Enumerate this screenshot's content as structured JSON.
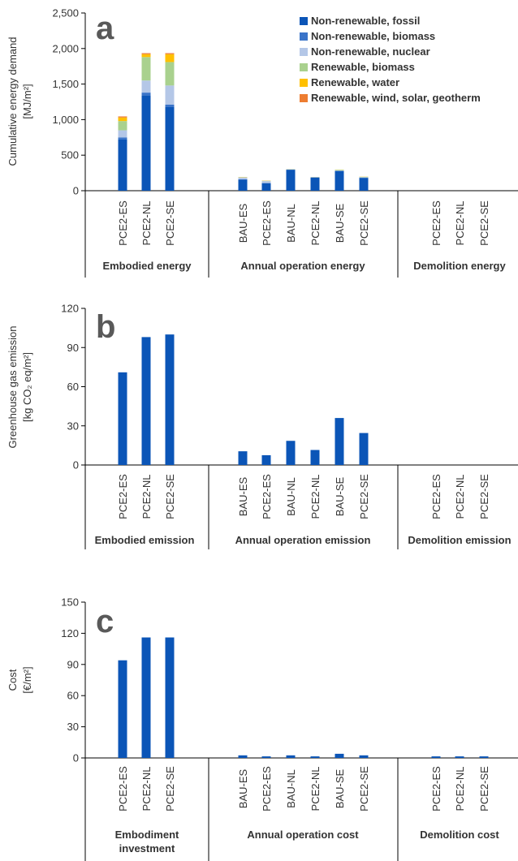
{
  "chart_data": [
    {
      "type": "bar",
      "stacked": true,
      "panel_label": "a",
      "ylabel_lines": [
        "Cumulative energy demand",
        "[MJ/m²]"
      ],
      "ylim": [
        0,
        2500
      ],
      "yticks": [
        "0",
        "500",
        "1,000",
        "1,500",
        "2,000",
        "2,500"
      ],
      "ytick_values": [
        0,
        500,
        1000,
        1500,
        2000,
        2500
      ],
      "legend": [
        {
          "name": "Non-renewable, fossil",
          "color": "#0B55B7"
        },
        {
          "name": "Non-renewable, biomass",
          "color": "#3A74C9"
        },
        {
          "name": "Non-renewable, nuclear",
          "color": "#B4C7E7"
        },
        {
          "name": "Renewable, biomass",
          "color": "#A9D18E"
        },
        {
          "name": "Renewable, water",
          "color": "#FFC000"
        },
        {
          "name": "Renewable, wind, solar, geotherm",
          "color": "#ED7D31"
        }
      ],
      "groups": [
        {
          "label": "Embodied energy",
          "categories": [
            "PCE2-ES",
            "PCE2-NL",
            "PCE2-SE"
          ]
        },
        {
          "label": "Annual operation energy",
          "categories": [
            "BAU-ES",
            "PCE2-ES",
            "BAU-NL",
            "PCE2-NL",
            "BAU-SE",
            "PCE2-SE"
          ]
        },
        {
          "label": "Demolition energy",
          "categories": [
            "PCE2-ES",
            "PCE2-NL",
            "PCE2-SE"
          ]
        }
      ],
      "stacks": [
        [
          [
            720,
            30,
            100,
            130,
            50,
            15
          ],
          [
            1340,
            40,
            170,
            330,
            40,
            15
          ],
          [
            1180,
            30,
            270,
            330,
            110,
            15
          ]
        ],
        [
          [
            155,
            5,
            25,
            5,
            2,
            1
          ],
          [
            105,
            5,
            25,
            5,
            2,
            1
          ],
          [
            295,
            3,
            3,
            2,
            1,
            0
          ],
          [
            185,
            3,
            3,
            2,
            1,
            0
          ],
          [
            275,
            5,
            5,
            8,
            2,
            0
          ],
          [
            180,
            5,
            5,
            6,
            2,
            0
          ]
        ],
        [
          [
            0,
            0,
            0,
            0,
            0,
            0
          ],
          [
            0,
            0,
            0,
            0,
            0,
            0
          ],
          [
            0,
            0,
            0,
            0,
            0,
            0
          ]
        ]
      ]
    },
    {
      "type": "bar",
      "panel_label": "b",
      "ylabel_lines": [
        "Greenhouse gas emission",
        "[kg CO₂ eq/m²]"
      ],
      "ylim": [
        0,
        120
      ],
      "yticks": [
        "0",
        "30",
        "60",
        "90",
        "120"
      ],
      "ytick_values": [
        0,
        30,
        60,
        90,
        120
      ],
      "color": "#0B55B7",
      "groups": [
        {
          "label": "Embodied emission",
          "categories": [
            "PCE2-ES",
            "PCE2-NL",
            "PCE2-SE"
          ],
          "values": [
            71,
            98,
            100
          ]
        },
        {
          "label": "Annual operation emission",
          "categories": [
            "BAU-ES",
            "PCE2-ES",
            "BAU-NL",
            "PCE2-NL",
            "BAU-SE",
            "PCE2-SE"
          ],
          "values": [
            10.5,
            7.5,
            18.5,
            11.5,
            36,
            24.5
          ]
        },
        {
          "label": "Demolition emission",
          "categories": [
            "PCE2-ES",
            "PCE2-NL",
            "PCE2-SE"
          ],
          "values": [
            0,
            0,
            0
          ]
        }
      ]
    },
    {
      "type": "bar",
      "panel_label": "c",
      "ylabel_lines": [
        "Cost",
        "[€/m²]"
      ],
      "ylim": [
        0,
        150
      ],
      "yticks": [
        "0",
        "30",
        "60",
        "90",
        "120",
        "150"
      ],
      "ytick_values": [
        0,
        30,
        60,
        90,
        120,
        150
      ],
      "color": "#0B55B7",
      "groups": [
        {
          "label_lines": [
            "Embodiment",
            "investment"
          ],
          "categories": [
            "PCE2-ES",
            "PCE2-NL",
            "PCE2-SE"
          ],
          "values": [
            94,
            116,
            116
          ]
        },
        {
          "label_lines": [
            "Annual operation cost"
          ],
          "categories": [
            "BAU-ES",
            "PCE2-ES",
            "BAU-NL",
            "PCE2-NL",
            "BAU-SE",
            "PCE2-SE"
          ],
          "values": [
            2.5,
            1.5,
            2.5,
            1.5,
            4,
            2.5
          ]
        },
        {
          "label_lines": [
            "Demolition cost"
          ],
          "categories": [
            "PCE2-ES",
            "PCE2-NL",
            "PCE2-SE"
          ],
          "values": [
            1.5,
            1.5,
            1.5
          ]
        }
      ]
    }
  ]
}
